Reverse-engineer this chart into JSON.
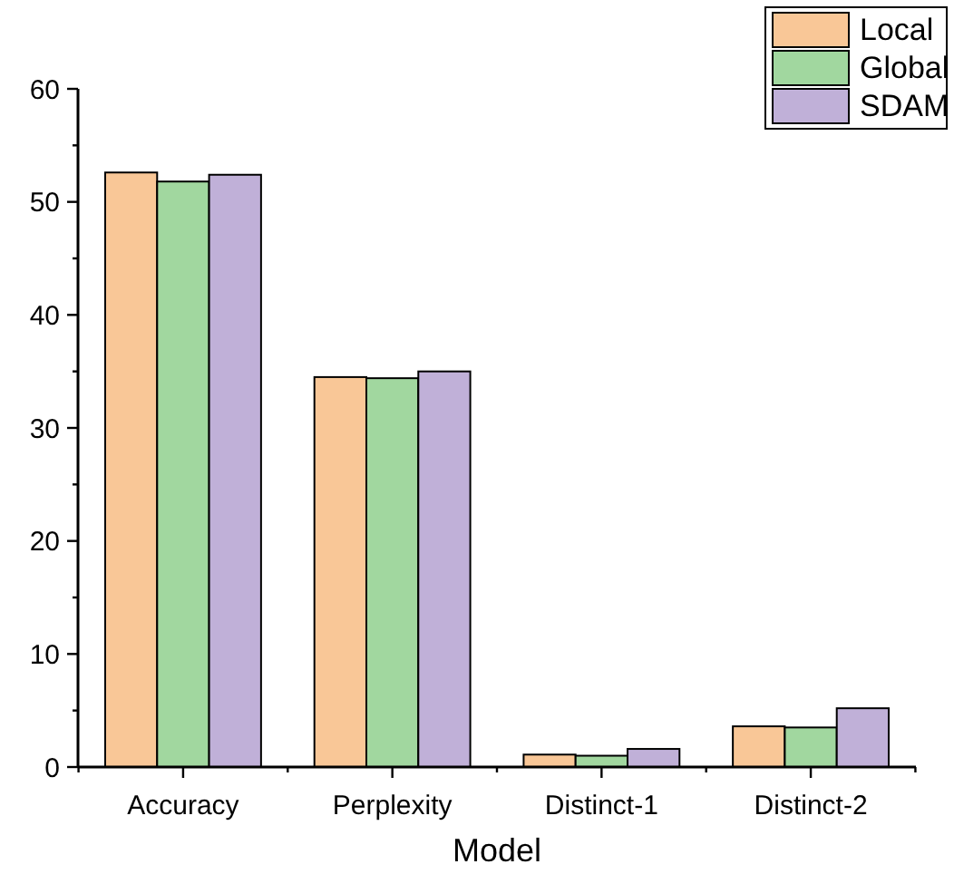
{
  "chart_data": {
    "type": "bar",
    "xlabel": "Model",
    "categories": [
      "Accuracy",
      "Perplexity",
      "Distinct-1",
      "Distinct-2"
    ],
    "series": [
      {
        "name": "Local",
        "color": "#f9c797",
        "values": [
          52.6,
          34.5,
          1.1,
          3.6
        ]
      },
      {
        "name": "Global",
        "color": "#a1d79f",
        "values": [
          51.8,
          34.4,
          1.0,
          3.5
        ]
      },
      {
        "name": "SDAM",
        "color": "#c0b0d8",
        "values": [
          52.4,
          35.0,
          1.6,
          5.2
        ]
      }
    ],
    "ylim": [
      0,
      60
    ],
    "yticks": [
      0,
      {
        "value": 5,
        "label": null
      },
      10,
      {
        "value": 15,
        "label": null
      },
      20,
      {
        "value": 25,
        "label": null
      },
      30,
      {
        "value": 35,
        "label": null
      },
      40,
      {
        "value": 45,
        "label": null
      },
      50,
      {
        "value": 55,
        "label": null
      },
      60
    ],
    "grid": false,
    "legend": "top right"
  }
}
